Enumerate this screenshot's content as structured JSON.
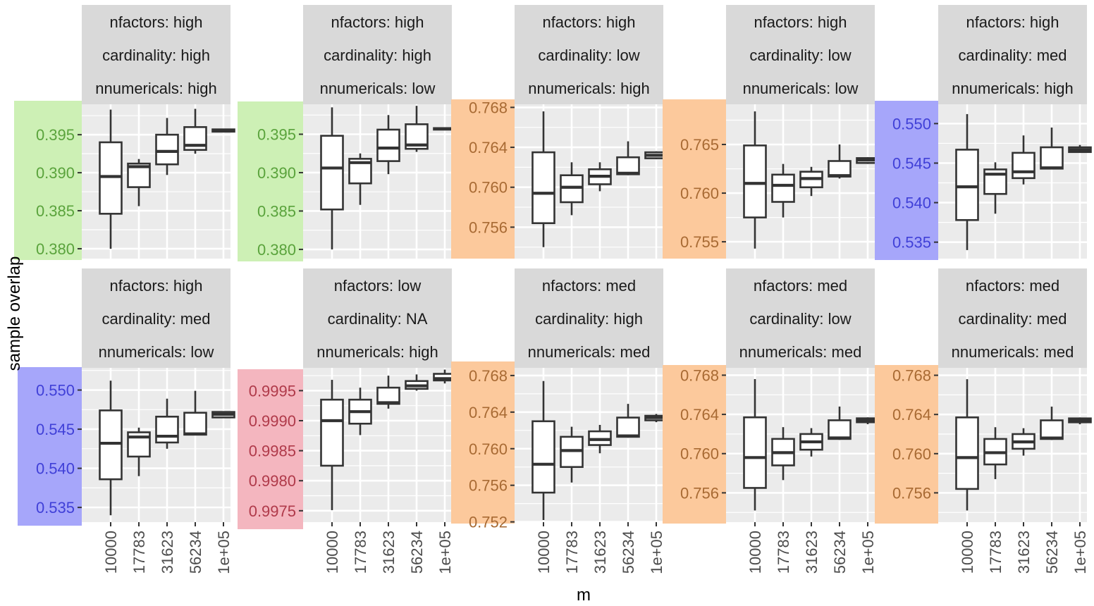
{
  "colors": {
    "green": "#cdf0b5",
    "orange": "#fcc99c",
    "blue": "#a6a6fa",
    "pink": "#f4b6bf",
    "panel": "#ebebeb",
    "strip": "#d9d9d9",
    "grid": "#ffffff",
    "box": "#333333",
    "text_default": "#4d4d4d"
  },
  "chart_data": {
    "type": "boxplot",
    "xlabel": "m",
    "ylabel": "sample overlap",
    "categories": [
      "10000",
      "17783",
      "31623",
      "56234",
      "1e+05"
    ],
    "scales": "free_y",
    "panels": [
      {
        "strip": [
          "nfactors: high",
          "cardinality: high",
          "nnumericals: high"
        ],
        "tick_color": "#5aa33c",
        "tick_bg": "#cdf0b5",
        "ylim": [
          0.3787,
          0.399
        ],
        "yticks": [
          0.38,
          0.385,
          0.39,
          0.395
        ],
        "ytick_labels": [
          "0.380",
          "0.385",
          "0.390",
          "0.395"
        ],
        "boxes": [
          {
            "min": 0.38,
            "q1": 0.3846,
            "median": 0.3895,
            "q3": 0.394,
            "max": 0.3983
          },
          {
            "min": 0.3856,
            "q1": 0.3881,
            "median": 0.3908,
            "q3": 0.3912,
            "max": 0.3918
          },
          {
            "min": 0.3897,
            "q1": 0.3911,
            "median": 0.3928,
            "q3": 0.395,
            "max": 0.3972
          },
          {
            "min": 0.3925,
            "q1": 0.393,
            "median": 0.3936,
            "q3": 0.396,
            "max": 0.3984
          },
          {
            "min": 0.3953,
            "q1": 0.3954,
            "median": 0.3955,
            "q3": 0.3957,
            "max": 0.3958
          }
        ]
      },
      {
        "strip": [
          "nfactors: high",
          "cardinality: high",
          "nnumericals: low"
        ],
        "tick_color": "#5aa33c",
        "tick_bg": "#cdf0b5",
        "ylim": [
          0.3788,
          0.3989
        ],
        "yticks": [
          0.38,
          0.385,
          0.39,
          0.395
        ],
        "ytick_labels": [
          "0.380",
          "0.385",
          "0.390",
          "0.395"
        ],
        "boxes": [
          {
            "min": 0.38,
            "q1": 0.3852,
            "median": 0.3906,
            "q3": 0.3948,
            "max": 0.3985
          },
          {
            "min": 0.3858,
            "q1": 0.3886,
            "median": 0.3913,
            "q3": 0.3918,
            "max": 0.3925
          },
          {
            "min": 0.3898,
            "q1": 0.3915,
            "median": 0.3932,
            "q3": 0.3956,
            "max": 0.3975
          },
          {
            "min": 0.3927,
            "q1": 0.3931,
            "median": 0.3936,
            "q3": 0.3963,
            "max": 0.3987
          },
          {
            "min": 0.3955,
            "q1": 0.3956,
            "median": 0.3957,
            "q3": 0.3958,
            "max": 0.3959
          }
        ]
      },
      {
        "strip": [
          "nfactors: high",
          "cardinality: low",
          "nnumericals: high"
        ],
        "tick_color": "#a86a33",
        "tick_bg": "#fcc99c",
        "ylim": [
          0.75285,
          0.76831
        ],
        "yticks": [
          0.756,
          0.76,
          0.764,
          0.768
        ],
        "ytick_labels": [
          "0.756",
          "0.760",
          "0.764",
          "0.768"
        ],
        "boxes": [
          {
            "min": 0.754,
            "q1": 0.7564,
            "median": 0.7594,
            "q3": 0.7635,
            "max": 0.7676
          },
          {
            "min": 0.7572,
            "q1": 0.7585,
            "median": 0.76,
            "q3": 0.7612,
            "max": 0.7625
          },
          {
            "min": 0.7596,
            "q1": 0.7603,
            "median": 0.7611,
            "q3": 0.7618,
            "max": 0.7625
          },
          {
            "min": 0.7612,
            "q1": 0.7613,
            "median": 0.7614,
            "q3": 0.763,
            "max": 0.7646
          },
          {
            "min": 0.7628,
            "q1": 0.7629,
            "median": 0.7632,
            "q3": 0.7635,
            "max": 0.7636
          }
        ]
      },
      {
        "strip": [
          "nfactors: high",
          "cardinality: low",
          "nnumericals: low"
        ],
        "tick_color": "#a86a33",
        "tick_bg": "#fcc99c",
        "ylim": [
          0.75327,
          0.76913
        ],
        "yticks": [
          0.755,
          0.76,
          0.765
        ],
        "ytick_labels": [
          "0.755",
          "0.760",
          "0.765"
        ],
        "boxes": [
          {
            "min": 0.7543,
            "q1": 0.7575,
            "median": 0.761,
            "q3": 0.7649,
            "max": 0.7684
          },
          {
            "min": 0.7575,
            "q1": 0.7591,
            "median": 0.7608,
            "q3": 0.7619,
            "max": 0.763
          },
          {
            "min": 0.7597,
            "q1": 0.7606,
            "median": 0.7615,
            "q3": 0.7622,
            "max": 0.7627
          },
          {
            "min": 0.7615,
            "q1": 0.7617,
            "median": 0.7618,
            "q3": 0.7633,
            "max": 0.765
          },
          {
            "min": 0.763,
            "q1": 0.7631,
            "median": 0.7634,
            "q3": 0.7636,
            "max": 0.7637
          }
        ]
      },
      {
        "strip": [
          "nfactors: high",
          "cardinality: med",
          "nnumericals: high"
        ],
        "tick_color": "#4040d8",
        "tick_bg": "#a6a6fa",
        "ylim": [
          0.53292,
          0.55244
        ],
        "yticks": [
          0.535,
          0.54,
          0.545,
          0.55
        ],
        "ytick_labels": [
          "0.535",
          "0.540",
          "0.545",
          "0.550"
        ],
        "boxes": [
          {
            "min": 0.534,
            "q1": 0.5378,
            "median": 0.542,
            "q3": 0.5467,
            "max": 0.5512
          },
          {
            "min": 0.5386,
            "q1": 0.5411,
            "median": 0.5436,
            "q3": 0.5442,
            "max": 0.5451
          },
          {
            "min": 0.5423,
            "q1": 0.5431,
            "median": 0.5439,
            "q3": 0.5463,
            "max": 0.5485
          },
          {
            "min": 0.5442,
            "q1": 0.5443,
            "median": 0.5444,
            "q3": 0.547,
            "max": 0.5495
          },
          {
            "min": 0.5463,
            "q1": 0.5464,
            "median": 0.5467,
            "q3": 0.547,
            "max": 0.5473
          }
        ]
      },
      {
        "strip": [
          "nfactors: high",
          "cardinality: med",
          "nnumericals: low"
        ],
        "tick_color": "#4040d8",
        "tick_bg": "#a6a6fa",
        "ylim": [
          0.53312,
          0.55284
        ],
        "yticks": [
          0.535,
          0.54,
          0.545,
          0.55
        ],
        "ytick_labels": [
          "0.535",
          "0.540",
          "0.545",
          "0.550"
        ],
        "boxes": [
          {
            "min": 0.534,
            "q1": 0.5386,
            "median": 0.5432,
            "q3": 0.5474,
            "max": 0.5512
          },
          {
            "min": 0.539,
            "q1": 0.5415,
            "median": 0.544,
            "q3": 0.5446,
            "max": 0.5452
          },
          {
            "min": 0.5425,
            "q1": 0.5433,
            "median": 0.5441,
            "q3": 0.5466,
            "max": 0.5489
          },
          {
            "min": 0.5442,
            "q1": 0.5443,
            "median": 0.5444,
            "q3": 0.5471,
            "max": 0.5499
          },
          {
            "min": 0.5464,
            "q1": 0.5465,
            "median": 0.5469,
            "q3": 0.5472,
            "max": 0.5473
          }
        ]
      },
      {
        "strip": [
          "nfactors: low",
          "cardinality: NA",
          "nnumericals: high"
        ],
        "tick_color": "#b03a4a",
        "tick_bg": "#f4b6bf",
        "ylim": [
          0.99731,
          0.99988
        ],
        "yticks": [
          0.9975,
          0.998,
          0.9985,
          0.999,
          0.9995
        ],
        "ytick_labels": [
          "0.9975",
          "0.9980",
          "0.9985",
          "0.9990",
          "0.9995"
        ],
        "boxes": [
          {
            "min": 0.99751,
            "q1": 0.99825,
            "median": 0.999,
            "q3": 0.99935,
            "max": 0.99968
          },
          {
            "min": 0.99876,
            "q1": 0.99895,
            "median": 0.99915,
            "q3": 0.99935,
            "max": 0.99955
          },
          {
            "min": 0.9992,
            "q1": 0.99928,
            "median": 0.9993,
            "q3": 0.99955,
            "max": 0.99975
          },
          {
            "min": 0.9995,
            "q1": 0.99953,
            "median": 0.99958,
            "q3": 0.99966,
            "max": 0.99977
          },
          {
            "min": 0.99962,
            "q1": 0.99967,
            "median": 0.9997,
            "q3": 0.99978,
            "max": 0.99985
          }
        ]
      },
      {
        "strip": [
          "nfactors: med",
          "cardinality: high",
          "nnumericals: med"
        ],
        "tick_color": "#a86a33",
        "tick_bg": "#fcc99c",
        "ylim": [
          0.75197,
          0.76884
        ],
        "yticks": [
          0.752,
          0.756,
          0.76,
          0.764,
          0.768
        ],
        "ytick_labels": [
          "0.752",
          "0.756",
          "0.760",
          "0.764",
          "0.768"
        ],
        "boxes": [
          {
            "min": 0.7522,
            "q1": 0.7552,
            "median": 0.7583,
            "q3": 0.763,
            "max": 0.7674
          },
          {
            "min": 0.7563,
            "q1": 0.758,
            "median": 0.7598,
            "q3": 0.7613,
            "max": 0.7624
          },
          {
            "min": 0.7595,
            "q1": 0.7604,
            "median": 0.761,
            "q3": 0.7619,
            "max": 0.7626
          },
          {
            "min": 0.7612,
            "q1": 0.7613,
            "median": 0.7614,
            "q3": 0.7634,
            "max": 0.7649
          },
          {
            "min": 0.7629,
            "q1": 0.7631,
            "median": 0.7634,
            "q3": 0.7636,
            "max": 0.7638
          }
        ]
      },
      {
        "strip": [
          "nfactors: med",
          "cardinality: low",
          "nnumericals: med"
        ],
        "tick_color": "#a86a33",
        "tick_bg": "#fcc99c",
        "ylim": [
          0.75301,
          0.76875
        ],
        "yticks": [
          0.756,
          0.76,
          0.764,
          0.768
        ],
        "ytick_labels": [
          "0.756",
          "0.760",
          "0.764",
          "0.768"
        ],
        "boxes": [
          {
            "min": 0.7542,
            "q1": 0.7565,
            "median": 0.7596,
            "q3": 0.7637,
            "max": 0.7676
          },
          {
            "min": 0.7573,
            "q1": 0.7588,
            "median": 0.7601,
            "q3": 0.7615,
            "max": 0.7627
          },
          {
            "min": 0.7597,
            "q1": 0.7604,
            "median": 0.7612,
            "q3": 0.762,
            "max": 0.7626
          },
          {
            "min": 0.7614,
            "q1": 0.7615,
            "median": 0.7616,
            "q3": 0.7634,
            "max": 0.7648
          },
          {
            "min": 0.763,
            "q1": 0.7632,
            "median": 0.7634,
            "q3": 0.7636,
            "max": 0.7637
          }
        ]
      },
      {
        "strip": [
          "nfactors: med",
          "cardinality: med",
          "nnumericals: med"
        ],
        "tick_color": "#a86a33",
        "tick_bg": "#fcc99c",
        "ylim": [
          0.75301,
          0.76876
        ],
        "yticks": [
          0.756,
          0.76,
          0.764,
          0.768
        ],
        "ytick_labels": [
          "0.756",
          "0.760",
          "0.764",
          "0.768"
        ],
        "boxes": [
          {
            "min": 0.7542,
            "q1": 0.7564,
            "median": 0.7596,
            "q3": 0.7637,
            "max": 0.7676
          },
          {
            "min": 0.7574,
            "q1": 0.7589,
            "median": 0.7601,
            "q3": 0.7615,
            "max": 0.7627
          },
          {
            "min": 0.7598,
            "q1": 0.7605,
            "median": 0.7612,
            "q3": 0.762,
            "max": 0.7626
          },
          {
            "min": 0.7614,
            "q1": 0.7615,
            "median": 0.7616,
            "q3": 0.7634,
            "max": 0.7648
          },
          {
            "min": 0.763,
            "q1": 0.7632,
            "median": 0.7634,
            "q3": 0.7636,
            "max": 0.7637
          }
        ]
      }
    ]
  }
}
